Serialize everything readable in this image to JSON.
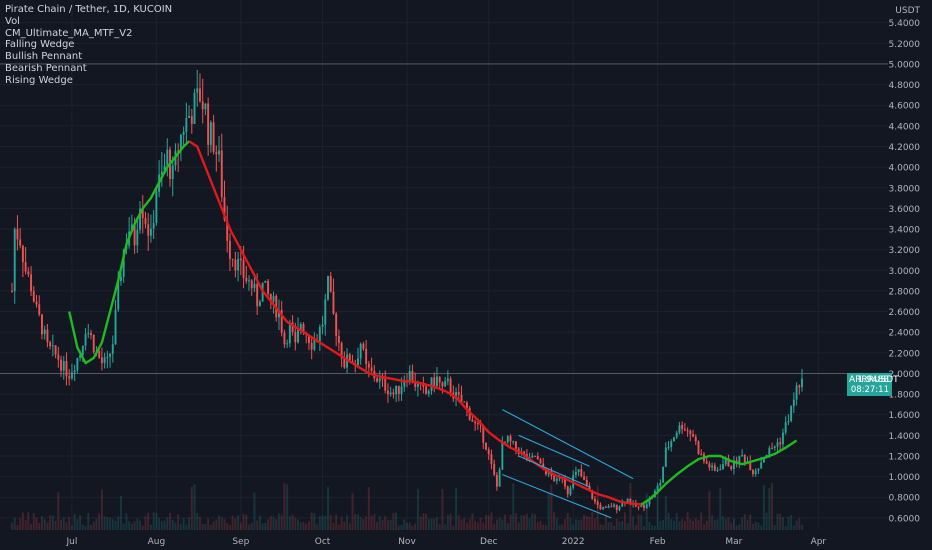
{
  "title": "Pirate Chain / Tether, 1D, KUCOIN",
  "indicators": [
    "Vol",
    "CM_Ultimate_MA_MTF_V2",
    "Falling Wedge",
    "Bullish Pennant",
    "Bearish Pennant",
    "Rising Wedge"
  ],
  "last_price": {
    "symbol": "ARRRUSDT",
    "value": "1.9488",
    "countdown": "08:27:11"
  },
  "colors": {
    "background": "#131722",
    "up": "#26a69a",
    "down": "#ef5350",
    "ma_up": "#1fbb1f",
    "ma_down": "#e0191c",
    "wedge": "#2ea8d8",
    "grid": "#1e2230",
    "text": "#b2b5be"
  },
  "chart_data": {
    "type": "candlestick",
    "quote_unit": "USDT",
    "y_axis_ticks": [
      "0.6000",
      "0.8000",
      "1.0000",
      "1.2000",
      "1.4000",
      "1.6000",
      "1.8000",
      "2.0000",
      "2.2000",
      "2.4000",
      "2.6000",
      "2.8000",
      "3.0000",
      "3.2000",
      "3.4000",
      "3.6000",
      "3.8000",
      "4.0000",
      "4.2000",
      "4.4000",
      "4.6000",
      "4.8000",
      "5.0000",
      "5.2000",
      "5.4000"
    ],
    "ylim": [
      0.56,
      5.62
    ],
    "x_axis_ticks": [
      {
        "label": "Jul",
        "day": 22
      },
      {
        "label": "Aug",
        "day": 53
      },
      {
        "label": "Sep",
        "day": 84
      },
      {
        "label": "Oct",
        "day": 114
      },
      {
        "label": "Nov",
        "day": 145
      },
      {
        "label": "Dec",
        "day": 175
      },
      {
        "label": "2022",
        "day": 206
      },
      {
        "label": "Feb",
        "day": 237
      },
      {
        "label": "Mar",
        "day": 265
      },
      {
        "label": "Apr",
        "day": 296
      }
    ],
    "xlim": [
      0,
      325
    ],
    "horizontal_lines": [
      5.0,
      2.0
    ],
    "price_anchors": [
      [
        0,
        2.8
      ],
      [
        1,
        3.4
      ],
      [
        3,
        3.3
      ],
      [
        5,
        3.0
      ],
      [
        7,
        2.85
      ],
      [
        9,
        2.6
      ],
      [
        11,
        2.45
      ],
      [
        13,
        2.25
      ],
      [
        15,
        2.2
      ],
      [
        17,
        2.15
      ],
      [
        19,
        2.05
      ],
      [
        21,
        2.0
      ],
      [
        23,
        2.1
      ],
      [
        25,
        2.2
      ],
      [
        27,
        2.45
      ],
      [
        29,
        2.35
      ],
      [
        31,
        2.2
      ],
      [
        33,
        2.1
      ],
      [
        35,
        2.1
      ],
      [
        37,
        2.3
      ],
      [
        39,
        2.8
      ],
      [
        41,
        3.2
      ],
      [
        43,
        3.4
      ],
      [
        45,
        3.3
      ],
      [
        47,
        3.7
      ],
      [
        49,
        3.5
      ],
      [
        51,
        3.3
      ],
      [
        53,
        3.8
      ],
      [
        55,
        3.9
      ],
      [
        57,
        4.1
      ],
      [
        59,
        3.9
      ],
      [
        61,
        4.2
      ],
      [
        63,
        4.4
      ],
      [
        65,
        4.5
      ],
      [
        67,
        4.6
      ],
      [
        69,
        4.7
      ],
      [
        71,
        4.55
      ],
      [
        72,
        4.35
      ],
      [
        74,
        4.25
      ],
      [
        76,
        4.05
      ],
      [
        78,
        3.5
      ],
      [
        80,
        3.2
      ],
      [
        82,
        3.1
      ],
      [
        85,
        2.95
      ],
      [
        88,
        2.85
      ],
      [
        90,
        2.7
      ],
      [
        92,
        2.85
      ],
      [
        95,
        2.7
      ],
      [
        98,
        2.6
      ],
      [
        100,
        2.3
      ],
      [
        102,
        2.45
      ],
      [
        104,
        2.25
      ],
      [
        106,
        2.5
      ],
      [
        108,
        2.4
      ],
      [
        110,
        2.3
      ],
      [
        112,
        2.35
      ],
      [
        114,
        2.5
      ],
      [
        116,
        2.85
      ],
      [
        118,
        2.55
      ],
      [
        120,
        2.3
      ],
      [
        122,
        2.1
      ],
      [
        124,
        2.15
      ],
      [
        126,
        2.1
      ],
      [
        128,
        2.3
      ],
      [
        130,
        2.05
      ],
      [
        132,
        2.0
      ],
      [
        134,
        1.95
      ],
      [
        136,
        1.9
      ],
      [
        138,
        1.85
      ],
      [
        140,
        1.8
      ],
      [
        142,
        1.85
      ],
      [
        144,
        1.95
      ],
      [
        146,
        2.0
      ],
      [
        148,
        1.9
      ],
      [
        150,
        1.85
      ],
      [
        152,
        1.8
      ],
      [
        154,
        1.9
      ],
      [
        156,
        1.95
      ],
      [
        158,
        1.85
      ],
      [
        160,
        1.9
      ],
      [
        162,
        1.8
      ],
      [
        164,
        1.75
      ],
      [
        166,
        1.7
      ],
      [
        168,
        1.6
      ],
      [
        170,
        1.5
      ],
      [
        172,
        1.45
      ],
      [
        174,
        1.3
      ],
      [
        176,
        1.1
      ],
      [
        178,
        0.9
      ],
      [
        180,
        1.3
      ],
      [
        182,
        1.35
      ],
      [
        184,
        1.3
      ],
      [
        186,
        1.25
      ],
      [
        188,
        1.2
      ],
      [
        190,
        1.15
      ],
      [
        192,
        1.2
      ],
      [
        194,
        1.1
      ],
      [
        196,
        1.05
      ],
      [
        198,
        1.0
      ],
      [
        200,
        0.95
      ],
      [
        202,
        1.0
      ],
      [
        204,
        0.85
      ],
      [
        206,
        1.0
      ],
      [
        208,
        1.05
      ],
      [
        210,
        0.95
      ],
      [
        212,
        0.85
      ],
      [
        214,
        0.75
      ],
      [
        216,
        0.7
      ],
      [
        218,
        0.68
      ],
      [
        220,
        0.72
      ],
      [
        222,
        0.7
      ],
      [
        224,
        0.75
      ],
      [
        226,
        0.78
      ],
      [
        228,
        0.72
      ],
      [
        230,
        0.7
      ],
      [
        232,
        0.72
      ],
      [
        234,
        0.78
      ],
      [
        236,
        0.85
      ],
      [
        238,
        0.95
      ],
      [
        240,
        1.25
      ],
      [
        242,
        1.35
      ],
      [
        244,
        1.45
      ],
      [
        246,
        1.5
      ],
      [
        248,
        1.45
      ],
      [
        250,
        1.4
      ],
      [
        252,
        1.25
      ],
      [
        254,
        1.15
      ],
      [
        256,
        1.1
      ],
      [
        258,
        1.05
      ],
      [
        260,
        1.1
      ],
      [
        262,
        1.15
      ],
      [
        264,
        1.1
      ],
      [
        266,
        1.15
      ],
      [
        268,
        1.2
      ],
      [
        270,
        1.15
      ],
      [
        272,
        1.05
      ],
      [
        274,
        1.1
      ],
      [
        276,
        1.2
      ],
      [
        278,
        1.25
      ],
      [
        280,
        1.3
      ],
      [
        282,
        1.35
      ],
      [
        284,
        1.5
      ],
      [
        286,
        1.65
      ],
      [
        288,
        1.85
      ],
      [
        290,
        1.95
      ]
    ],
    "ma_line": [
      {
        "color": "ma_up",
        "points": [
          [
            21,
            2.6
          ],
          [
            24,
            2.25
          ],
          [
            27,
            2.1
          ],
          [
            30,
            2.15
          ],
          [
            33,
            2.3
          ],
          [
            36,
            2.6
          ],
          [
            39,
            2.9
          ],
          [
            42,
            3.25
          ],
          [
            45,
            3.45
          ],
          [
            48,
            3.6
          ],
          [
            51,
            3.7
          ],
          [
            54,
            3.85
          ],
          [
            57,
            4.0
          ],
          [
            60,
            4.1
          ],
          [
            63,
            4.2
          ],
          [
            65,
            4.25
          ]
        ]
      },
      {
        "color": "ma_down",
        "points": [
          [
            65,
            4.25
          ],
          [
            68,
            4.2
          ],
          [
            71,
            4.0
          ],
          [
            74,
            3.8
          ],
          [
            77,
            3.6
          ],
          [
            80,
            3.4
          ],
          [
            83,
            3.25
          ],
          [
            86,
            3.1
          ],
          [
            89,
            2.95
          ],
          [
            92,
            2.8
          ],
          [
            95,
            2.7
          ],
          [
            98,
            2.6
          ],
          [
            101,
            2.5
          ],
          [
            104,
            2.45
          ],
          [
            107,
            2.4
          ],
          [
            110,
            2.35
          ],
          [
            113,
            2.3
          ],
          [
            116,
            2.25
          ],
          [
            119,
            2.2
          ],
          [
            122,
            2.15
          ],
          [
            125,
            2.1
          ],
          [
            128,
            2.05
          ],
          [
            131,
            2.0
          ],
          [
            135,
            1.97
          ],
          [
            139,
            1.95
          ],
          [
            143,
            1.93
          ],
          [
            147,
            1.92
          ],
          [
            151,
            1.9
          ],
          [
            155,
            1.87
          ],
          [
            159,
            1.83
          ],
          [
            163,
            1.77
          ],
          [
            167,
            1.65
          ],
          [
            171,
            1.55
          ],
          [
            175,
            1.43
          ],
          [
            179,
            1.35
          ],
          [
            183,
            1.28
          ],
          [
            187,
            1.23
          ],
          [
            191,
            1.15
          ],
          [
            195,
            1.08
          ],
          [
            199,
            1.02
          ],
          [
            203,
            0.98
          ],
          [
            207,
            0.93
          ],
          [
            211,
            0.88
          ],
          [
            215,
            0.83
          ],
          [
            219,
            0.8
          ],
          [
            223,
            0.76
          ],
          [
            227,
            0.74
          ],
          [
            231,
            0.73
          ]
        ]
      },
      {
        "color": "ma_up",
        "points": [
          [
            231,
            0.73
          ],
          [
            234,
            0.78
          ],
          [
            237,
            0.85
          ],
          [
            240,
            0.93
          ],
          [
            244,
            1.02
          ],
          [
            248,
            1.1
          ],
          [
            252,
            1.17
          ],
          [
            256,
            1.2
          ],
          [
            260,
            1.2
          ],
          [
            264,
            1.15
          ],
          [
            268,
            1.12
          ],
          [
            272,
            1.15
          ],
          [
            276,
            1.18
          ],
          [
            280,
            1.22
          ],
          [
            284,
            1.28
          ],
          [
            288,
            1.35
          ]
        ]
      }
    ],
    "wedge_lines": [
      [
        [
          180,
          1.65
        ],
        [
          228,
          0.98
        ]
      ],
      [
        [
          180,
          1.02
        ],
        [
          220,
          0.6
        ]
      ],
      [
        [
          186,
          1.4
        ],
        [
          212,
          1.1
        ]
      ],
      [
        [
          186,
          1.2
        ],
        [
          212,
          0.9
        ]
      ]
    ]
  }
}
